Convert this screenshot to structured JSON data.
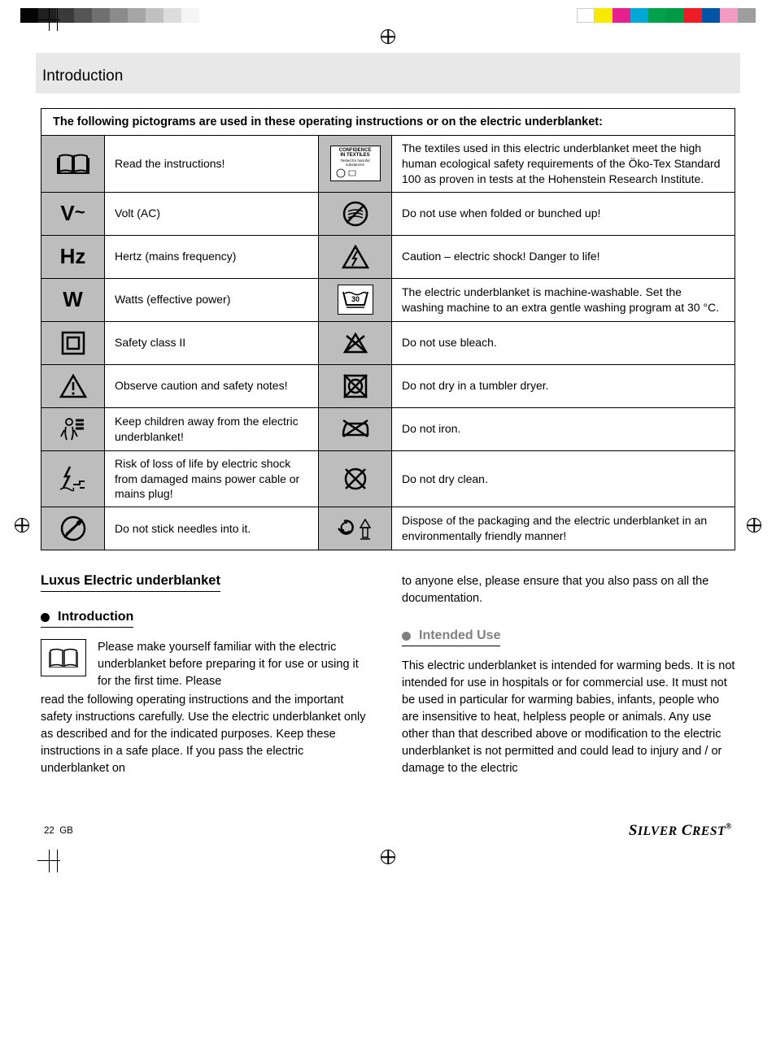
{
  "printer_bars": {
    "left": [
      "#050505",
      "#202020",
      "#3a3a3a",
      "#555555",
      "#707070",
      "#8b8b8b",
      "#a6a6a6",
      "#c1c1c1",
      "#dcdcdc",
      "#f5f5f5"
    ],
    "right": [
      "#ffffff",
      "#f7ea00",
      "#e81f8e",
      "#00a8d6",
      "#00a14b",
      "#009944",
      "#ee1c25",
      "#0054a6",
      "#f29ac1",
      "#9e9e9e"
    ]
  },
  "header": {
    "title": "Introduction"
  },
  "pict": {
    "caption": "The following pictograms are used in these operating instructions or on the electric underblanket:",
    "rows": [
      {
        "l_sym": "book",
        "l_txt": "Read the instructions!",
        "r_sym": "oeko",
        "r_txt": "The textiles used in this electric underblanket meet the high human ecological safety requirements of the Öko-Tex Standard 100 as proven in tests at the Hohenstein Research Institute."
      },
      {
        "l_sym": "V~",
        "l_txt": "Volt (AC)",
        "r_sym": "no-fold",
        "r_txt": "Do not use when folded or bunched up!"
      },
      {
        "l_sym": "Hz",
        "l_txt": "Hertz (mains frequency)",
        "r_sym": "shock",
        "r_txt": "Caution – electric shock! Danger to life!"
      },
      {
        "l_sym": "W",
        "l_txt": "Watts (effective power)",
        "r_sym": "wash30",
        "r_txt": "The electric underblanket is machine-washable. Set the washing machine to an extra gentle washing program at 30 °C."
      },
      {
        "l_sym": "class2",
        "l_txt": "Safety class II",
        "r_sym": "no-bleach",
        "r_txt": "Do not use bleach."
      },
      {
        "l_sym": "warn",
        "l_txt": "Observe caution and safety notes!",
        "r_sym": "no-tumble",
        "r_txt": "Do not dry in a tumbler dryer."
      },
      {
        "l_sym": "child",
        "l_txt": "Keep children away from the electric underblanket!",
        "r_sym": "no-iron",
        "r_txt": "Do not iron."
      },
      {
        "l_sym": "plug-shock",
        "l_txt": "Risk of loss of life by electric shock from damaged mains power cable or mains plug!",
        "r_sym": "no-dryclean",
        "r_txt": "Do not dry clean."
      },
      {
        "l_sym": "no-needle",
        "l_txt": "Do not stick needles into it.",
        "r_sym": "recycle",
        "r_txt": "Dispose of the packaging and the electric underblanket in an environmentally friendly manner!"
      }
    ]
  },
  "product_title": "Luxus Electric underblanket",
  "section_intro": {
    "heading": "Introduction",
    "lead": "Please make yourself familiar with the electric underblanket before preparing it for use or using it for the first time. Please",
    "rest": "read the following operating instructions and the important safety instructions carefully. Use the electric underblanket only as described and for the indicated purposes. Keep these instructions in a safe place. If you pass the electric underblanket on"
  },
  "col2_lead": "to anyone else, please ensure that you also pass on all the documentation.",
  "section_use": {
    "heading": "Intended Use",
    "text": "This electric underblanket is intended for warming beds. It is not intended for use in hospitals or for commercial use. It must not be used in particular for warming babies, infants, people who are insensitive to heat, helpless people or animals. Any use other than that described above or modification to the electric underblanket is not permitted and could lead to injury and / or damage to the electric"
  },
  "footer": {
    "page": "22",
    "lang": "GB",
    "brand": "SilverCrest"
  }
}
